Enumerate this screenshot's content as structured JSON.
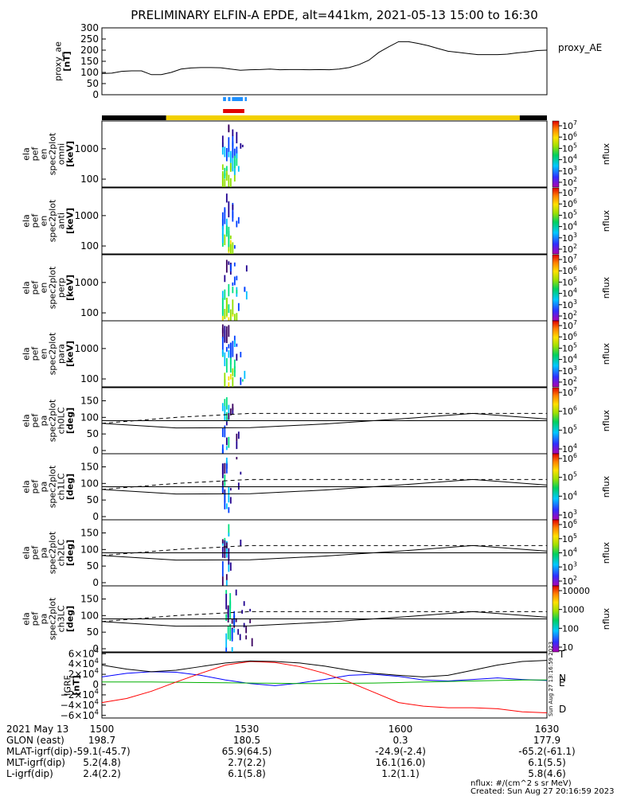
{
  "title": "PRELIMINARY ELFIN-A EPDE, alt=441km, 2021-05-13 15:00 to 16:30",
  "colors": {
    "black": "#000000",
    "yellow": "#f2d000",
    "blue_sci": "#1e90ff",
    "red_bar": "#e00000",
    "N": "#0000ff",
    "E": "#00b000",
    "D": "#ff0000"
  },
  "chart_data": [
    {
      "id": "proxy_ae",
      "type": "line",
      "ylabel_lines": [
        "proxy_ae",
        "[nT]"
      ],
      "legend": "proxy_AE",
      "yticks": [
        300,
        250,
        200,
        150,
        100,
        50,
        0
      ],
      "ylim": [
        0,
        300
      ],
      "x_minutes": [
        0,
        2,
        4,
        6,
        8,
        10,
        12,
        14,
        16,
        18,
        20,
        22,
        24,
        26,
        28,
        30,
        32,
        34,
        36,
        38,
        40,
        42,
        44,
        46,
        48,
        50,
        52,
        54,
        56,
        58,
        60,
        62,
        64,
        66,
        68,
        70,
        72,
        74,
        76,
        78,
        80,
        82,
        84,
        86,
        88,
        90
      ],
      "values": [
        95,
        97,
        105,
        107,
        107,
        90,
        90,
        100,
        115,
        120,
        122,
        122,
        121,
        115,
        110,
        112,
        113,
        115,
        112,
        113,
        113,
        112,
        113,
        112,
        115,
        122,
        135,
        155,
        190,
        215,
        238,
        238,
        230,
        220,
        207,
        195,
        190,
        185,
        180,
        180,
        180,
        182,
        188,
        192,
        198,
        200
      ]
    },
    {
      "id": "science_zone_markers",
      "type": "table",
      "blue_segments": [
        [
          24.5,
          25.1
        ],
        [
          25.5,
          26.0
        ],
        [
          26.3,
          28.5
        ],
        [
          28.9,
          29.3
        ]
      ],
      "red_segment": [
        24.5,
        28.8
      ]
    },
    {
      "id": "orbit_bar",
      "type": "table",
      "segments": [
        {
          "from": 0,
          "to": 13,
          "color": "black"
        },
        {
          "from": 13,
          "to": 84.5,
          "color": "yellow"
        },
        {
          "from": 84.5,
          "to": 90,
          "color": "black"
        }
      ]
    },
    {
      "id": "spectra",
      "type": "heatmap",
      "panels": [
        {
          "label_lines": [
            "ela",
            "pef",
            "en",
            "spec2plot",
            "omni",
            "[keV]"
          ],
          "yticks": [
            "1000",
            "100"
          ],
          "zticks": [
            "10^7",
            "10^6",
            "10^5",
            "10^4",
            "10^3",
            "10^2"
          ],
          "zlabel": "nflux",
          "activity": [
            24.3,
            29.5
          ]
        },
        {
          "label_lines": [
            "ela",
            "pef",
            "en",
            "spec2plot",
            "anti",
            "[keV]"
          ],
          "yticks": [
            "1000",
            "100"
          ],
          "zticks": [
            "10^7",
            "10^6",
            "10^5",
            "10^4",
            "10^3",
            "10^2"
          ],
          "zlabel": "nflux",
          "activity": [
            24.3,
            28.3
          ]
        },
        {
          "label_lines": [
            "ela",
            "pef",
            "en",
            "spec2plot",
            "perp",
            "[keV]"
          ],
          "yticks": [
            "1000",
            "100"
          ],
          "zticks": [
            "10^7",
            "10^6",
            "10^5",
            "10^4",
            "10^3",
            "10^2"
          ],
          "zlabel": "nflux",
          "activity": [
            24.3,
            29.5
          ]
        },
        {
          "label_lines": [
            "ela",
            "pef",
            "en",
            "spec2plot",
            "para",
            "[keV]"
          ],
          "yticks": [
            "1000",
            "100"
          ],
          "zticks": [
            "10^7",
            "10^6",
            "10^5",
            "10^4",
            "10^3",
            "10^2"
          ],
          "zlabel": "nflux",
          "activity": [
            24.3,
            29.0
          ]
        }
      ]
    },
    {
      "id": "pitch_angle",
      "type": "heatmap",
      "x_minutes": [
        0,
        15,
        30,
        45,
        60,
        75,
        90
      ],
      "solid_line": [
        82,
        68,
        69,
        80,
        95,
        112,
        95
      ],
      "dashed_line": [
        82,
        100,
        112,
        112,
        112,
        112,
        112
      ],
      "flat_line": [
        90,
        90,
        90,
        90,
        90,
        90,
        90
      ],
      "yticks": [
        "150",
        "100",
        "50",
        "0"
      ],
      "panels": [
        {
          "label_lines": [
            "ela",
            "pef",
            "pa",
            "spec2plot",
            "ch0LC",
            "[deg]"
          ],
          "zticks": [
            "10^7",
            "10^6",
            "10^5",
            "10^4"
          ],
          "zlabel": "nflux",
          "activity": [
            24.3,
            28.4
          ]
        },
        {
          "label_lines": [
            "ela",
            "pef",
            "pa",
            "spec2plot",
            "ch1LC",
            "[deg]"
          ],
          "zticks": [
            "10^6",
            "10^5",
            "10^4",
            "10^3"
          ],
          "zlabel": "nflux",
          "activity": [
            24.3,
            28.2
          ]
        },
        {
          "label_lines": [
            "ela",
            "pef",
            "pa",
            "spec2plot",
            "ch2LC",
            "[deg]"
          ],
          "zticks": [
            "10^6",
            "10^5",
            "10^4",
            "10^3",
            "10^2"
          ],
          "zlabel": "nflux",
          "activity": [
            24.3,
            28.6
          ]
        },
        {
          "label_lines": [
            "ela",
            "pef",
            "pa",
            "spec2plot",
            "ch3LC",
            "[deg]"
          ],
          "zticks": [
            "10000",
            "1000",
            "100",
            "10"
          ],
          "zlabel": "nflux",
          "activity": [
            25.0,
            30.5
          ]
        }
      ]
    },
    {
      "id": "igrf",
      "type": "line",
      "ylabel_lines": [
        "IGRF",
        "[nT]"
      ],
      "yticks": [
        "6×10^4",
        "4×10^4",
        "2×10^4",
        "0",
        "−2×10^4",
        "−4×10^4",
        "−6×10^4"
      ],
      "ytick_values": [
        60000,
        40000,
        20000,
        0,
        -20000,
        -40000,
        -60000
      ],
      "ylim": [
        -65000,
        62000
      ],
      "x_minutes": [
        0,
        5,
        10,
        15,
        20,
        25,
        30,
        35,
        40,
        45,
        50,
        55,
        60,
        65,
        70,
        75,
        80,
        85,
        90
      ],
      "series": [
        {
          "name": "N",
          "color": "N",
          "values": [
            15000,
            22000,
            25000,
            24000,
            18000,
            9000,
            2000,
            -2000,
            3000,
            10000,
            18000,
            20000,
            16000,
            9000,
            7000,
            10000,
            13000,
            10000,
            8000
          ]
        },
        {
          "name": "E",
          "color": "E",
          "values": [
            5000,
            5000,
            5000,
            4500,
            4000,
            3500,
            3000,
            2500,
            2000,
            2000,
            2500,
            3000,
            4000,
            5000,
            6000,
            7000,
            8000,
            9000,
            9000
          ]
        },
        {
          "name": "D",
          "color": "D",
          "values": [
            -35000,
            -27000,
            -13000,
            5000,
            22000,
            38000,
            45000,
            43000,
            35000,
            22000,
            5000,
            -15000,
            -35000,
            -42000,
            -45000,
            -45000,
            -47000,
            -53000,
            -55000
          ]
        },
        {
          "name": "",
          "color": "black",
          "values": [
            38000,
            30000,
            25000,
            28000,
            35000,
            42000,
            46000,
            45000,
            42000,
            36000,
            28000,
            22000,
            18000,
            15000,
            18000,
            28000,
            38000,
            45000,
            47000
          ]
        }
      ],
      "side_labels": [
        "T",
        "N",
        "E",
        "D"
      ],
      "vertical_text": "Sun Aug 27 13:16:59 2023"
    }
  ],
  "footer": {
    "rows": [
      [
        "2021 May 13",
        "1500",
        "1530",
        "1600",
        "1630"
      ],
      [
        "GLON (east)",
        "198.7",
        "180.5",
        "0.3",
        "177.9"
      ],
      [
        "MLAT-igrf(dip)",
        "-59.1(-45.7)",
        "65.9(64.5)",
        "-24.9(-2.4)",
        "-65.2(-61.1)"
      ],
      [
        "MLT-igrf(dip)",
        "5.2(4.8)",
        "2.7(2.2)",
        "16.1(16.0)",
        "6.1(5.5)"
      ],
      [
        "L-igrf(dip)",
        "2.4(2.2)",
        "6.1(5.8)",
        "1.2(1.1)",
        "5.8(4.6)"
      ]
    ],
    "note1": "nflux: #/(cm^2 s sr MeV)",
    "note2": "Created: Sun Aug 27 20:16:59 2023"
  }
}
